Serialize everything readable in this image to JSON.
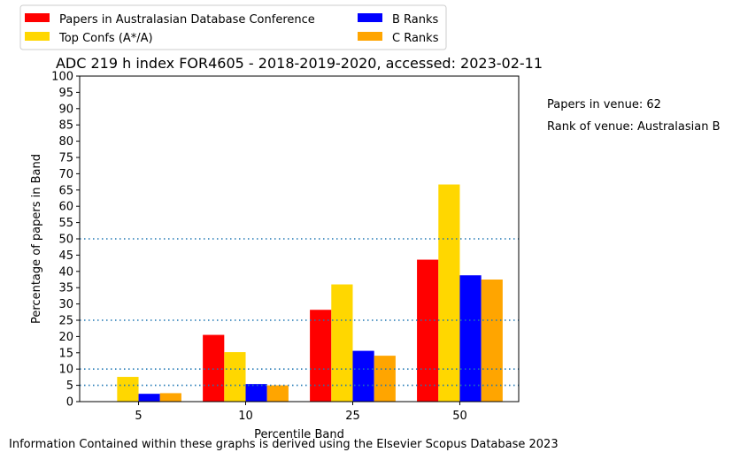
{
  "chart_data": {
    "type": "bar",
    "title": "ADC 219 h index FOR4605 - 2018-2019-2020, accessed: 2023-02-11",
    "xlabel": "Percentile Band",
    "ylabel": "Percentage of papers in Band",
    "categories": [
      "5",
      "10",
      "25",
      "50"
    ],
    "ylim": [
      0,
      100
    ],
    "yticks": [
      "0",
      "5",
      "10",
      "15",
      "20",
      "25",
      "30",
      "35",
      "40",
      "45",
      "50",
      "55",
      "60",
      "65",
      "70",
      "75",
      "80",
      "85",
      "90",
      "95",
      "100"
    ],
    "reference_lines": [
      5,
      10,
      25,
      50
    ],
    "reference_line_color": "#1f77b4",
    "grid": false,
    "legend_position": "top-left, outside plot",
    "series": [
      {
        "name": "Papers in Australasian Database Conference",
        "color": "#ff0000",
        "values": [
          0,
          20.5,
          28.2,
          43.6
        ]
      },
      {
        "name": "Top Confs (A*/A)",
        "color": "#ffd700",
        "values": [
          7.6,
          15.2,
          36.0,
          66.7
        ]
      },
      {
        "name": "B Ranks",
        "color": "#0000ff",
        "values": [
          2.4,
          5.4,
          15.6,
          38.8
        ]
      },
      {
        "name": "C Ranks",
        "color": "#ffa500",
        "values": [
          2.6,
          5.0,
          14.1,
          37.5
        ]
      }
    ]
  },
  "side_notes": {
    "papers_in_venue": "Papers in venue: 62",
    "rank_of_venue": "Rank of venue: Australasian B"
  },
  "footer": "Information Contained within these graphs is derived using the Elsevier Scopus Database 2023"
}
